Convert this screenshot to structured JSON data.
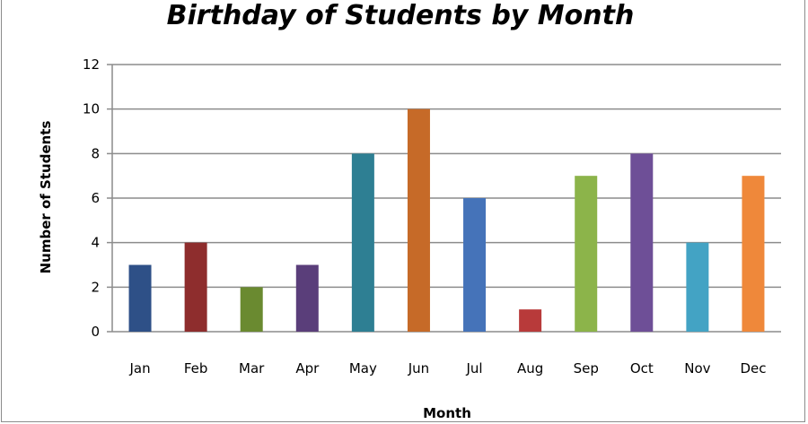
{
  "chart_data": {
    "type": "bar",
    "title": "Birthday of Students by Month",
    "xlabel": "Month",
    "ylabel": "Number of Students",
    "categories": [
      "Jan",
      "Feb",
      "Mar",
      "Apr",
      "May",
      "Jun",
      "Jul",
      "Aug",
      "Sep",
      "Oct",
      "Nov",
      "Dec"
    ],
    "values": [
      3,
      4,
      2,
      3,
      8,
      10,
      6,
      1,
      7,
      8,
      4,
      7
    ],
    "colors": [
      "#2e5087",
      "#8e2d2d",
      "#6a8a30",
      "#5a3e7a",
      "#2e7f93",
      "#c66a28",
      "#4573b9",
      "#b83a3a",
      "#8cb44a",
      "#6e4f97",
      "#43a3c4",
      "#ef883a"
    ],
    "ylim": [
      0,
      12
    ],
    "yticks": [
      0,
      2,
      4,
      6,
      8,
      10,
      12
    ],
    "grid": true,
    "legend": "none"
  }
}
